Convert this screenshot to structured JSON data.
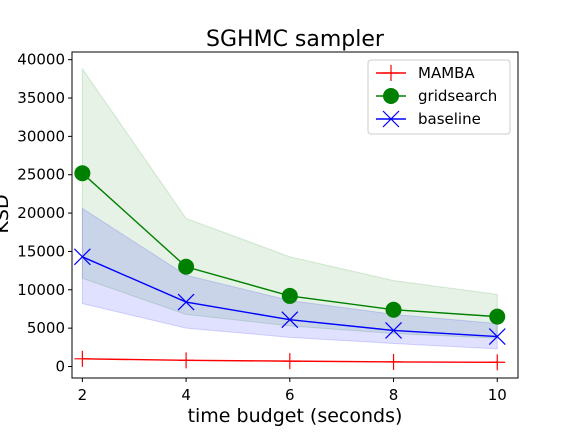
{
  "chart_data": {
    "type": "line",
    "title": "SGHMC sampler",
    "xlabel": "time budget (seconds)",
    "ylabel": "KSD",
    "x": [
      2,
      4,
      6,
      8,
      10
    ],
    "xticks": [
      "2",
      "4",
      "6",
      "8",
      "10"
    ],
    "yticks": [
      "0",
      "5000",
      "10000",
      "15000",
      "20000",
      "25000",
      "30000",
      "35000",
      "40000"
    ],
    "xlim": [
      1.8,
      10.4
    ],
    "ylim": [
      -1500,
      41000
    ],
    "grid": false,
    "legend_position": "top-right",
    "series": [
      {
        "name": "MAMBA",
        "color": "#ff0000",
        "marker": "plus-marker",
        "values": [
          1000,
          800,
          700,
          600,
          550
        ],
        "band_upper": null,
        "band_lower": null
      },
      {
        "name": "gridsearch",
        "color": "#008000",
        "marker": "circle-marker",
        "values": [
          25200,
          13000,
          9200,
          7400,
          6500
        ],
        "band_upper": [
          38800,
          19300,
          14300,
          11200,
          9400
        ],
        "band_lower": [
          11500,
          6800,
          5300,
          4300,
          3700
        ]
      },
      {
        "name": "baseline",
        "color": "#0000ff",
        "marker": "x-marker",
        "values": [
          14300,
          8400,
          6100,
          4700,
          3900
        ],
        "band_upper": [
          20600,
          11900,
          8600,
          6800,
          5600
        ],
        "band_lower": [
          8200,
          5000,
          3800,
          3000,
          2300
        ]
      }
    ]
  }
}
